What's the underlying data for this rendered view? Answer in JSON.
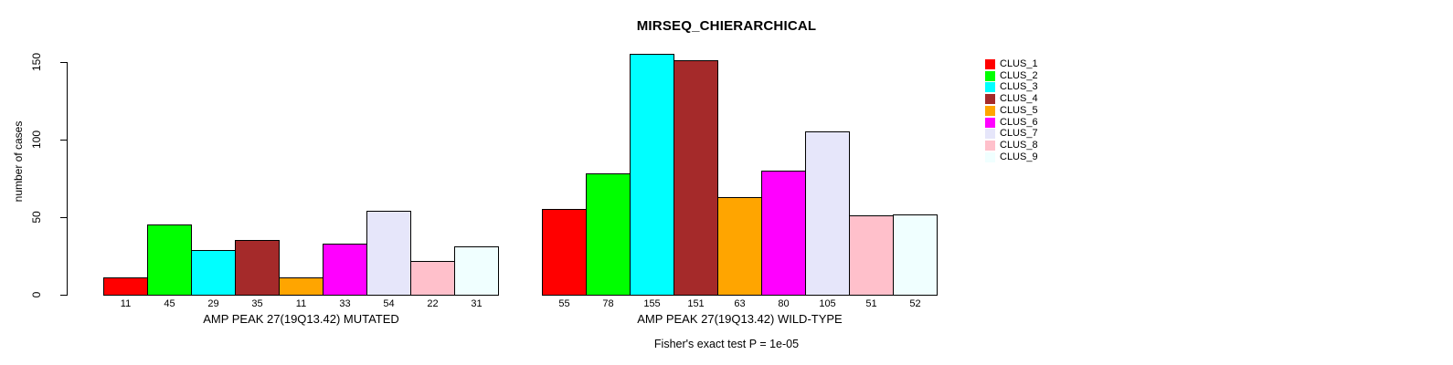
{
  "title": "MIRSEQ_CHIERARCHICAL",
  "footnote": "Fisher's exact test P = 1e-05",
  "chart_data": {
    "type": "bar",
    "title": "MIRSEQ_CHIERARCHICAL",
    "ylabel": "number of cases",
    "xlabel": "",
    "ylim": [
      0,
      155
    ],
    "yticks": [
      0,
      50,
      100,
      150
    ],
    "grid": false,
    "legend_position": "right",
    "categories": [
      "CLUS_1",
      "CLUS_2",
      "CLUS_3",
      "CLUS_4",
      "CLUS_5",
      "CLUS_6",
      "CLUS_7",
      "CLUS_8",
      "CLUS_9"
    ],
    "colors": [
      "#FF0000",
      "#00FF00",
      "#00FFFF",
      "#A52A2A",
      "#FFA500",
      "#FF00FF",
      "#E6E6FA",
      "#FFC0CB",
      "#F0FFFF"
    ],
    "groups": [
      {
        "label": "AMP PEAK 27(19Q13.42) MUTATED",
        "values": [
          11,
          45,
          29,
          35,
          11,
          33,
          54,
          22,
          31
        ]
      },
      {
        "label": "AMP PEAK 27(19Q13.42) WILD-TYPE",
        "values": [
          55,
          78,
          155,
          151,
          63,
          80,
          105,
          51,
          52
        ]
      }
    ],
    "footnote": "Fisher's exact test P = 1e-05"
  }
}
